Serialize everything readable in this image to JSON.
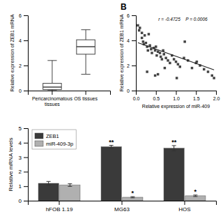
{
  "chart_data": [
    {
      "type": "box",
      "categories": [
        "Pericarcinomatous\ntissues",
        "OS tissues"
      ],
      "whislo": [
        0.0,
        1.3
      ],
      "q1": [
        0.08,
        2.9
      ],
      "med": [
        0.28,
        3.5
      ],
      "q3": [
        0.58,
        4.05
      ],
      "whishi": [
        2.4,
        4.85
      ],
      "color": "#444444",
      "y_label": "Relative expression of ZEB1 mRNA",
      "ylim": [
        0,
        6
      ],
      "yticks": [
        0,
        2,
        4,
        6
      ]
    },
    {
      "type": "scatter",
      "title": "B",
      "annotations": [
        "r = -0.4725",
        "P = 0.0006"
      ],
      "x_label": "Relative expression of miR-409",
      "y_label": "Relative expression of ZEB1 mRNA",
      "xlim": [
        0.0,
        2.0
      ],
      "ylim": [
        0,
        6
      ],
      "xticks": [
        {
          "value": 0.0,
          "label": "0.0"
        },
        0.5,
        {
          "value": 1.0,
          "label": "1.0"
        },
        1.5,
        {
          "value": 2.0,
          "label": "2.0"
        }
      ],
      "yticks": [
        0,
        2,
        4,
        6
      ],
      "series": [
        {
          "type": "scatter",
          "marker": "square",
          "color": "#444444",
          "x": [
            0.05,
            0.08,
            0.1,
            0.15,
            0.18,
            0.2,
            0.22,
            0.25,
            0.28,
            0.3,
            0.32,
            0.35,
            0.38,
            0.4,
            0.45,
            0.48,
            0.5,
            0.52,
            0.55,
            0.6,
            0.62,
            0.65,
            0.68,
            0.7,
            0.75,
            0.8,
            0.85,
            0.9,
            0.95,
            1.0,
            1.05,
            1.1,
            1.2,
            1.3,
            1.4,
            1.5,
            1.6,
            1.7,
            1.8,
            1.9,
            1.95,
            0.28,
            0.48,
            0.72,
            1.02,
            1.22,
            1.52,
            0.15,
            0.55
          ],
          "values": [
            5.2,
            4.8,
            5.0,
            4.2,
            3.9,
            3.7,
            4.4,
            3.8,
            3.5,
            3.2,
            4.5,
            3.6,
            3.3,
            3.0,
            3.4,
            3.2,
            3.5,
            2.8,
            3.1,
            3.0,
            2.7,
            2.5,
            3.2,
            2.9,
            2.6,
            2.4,
            2.2,
            2.8,
            2.5,
            2.3,
            2.1,
            1.9,
            2.6,
            2.4,
            1.8,
            2.2,
            2.0,
            1.7,
            1.5,
            1.2,
            1.0,
            1.5,
            1.2,
            1.8,
            1.0,
            3.9,
            2.3,
            4.6,
            1.3
          ]
        },
        {
          "type": "line",
          "color": "#222222",
          "x": [
            0.05,
            1.95
          ],
          "values": [
            3.82,
            1.65
          ]
        }
      ]
    },
    {
      "type": "bar",
      "categories": [
        "hFOB 1.19",
        "MG63",
        "HOS"
      ],
      "y_label": "Relative mRNA levels",
      "ylim": [
        0,
        5
      ],
      "yticks": [
        0,
        1,
        2,
        3,
        4,
        5
      ],
      "legend": "upper left",
      "series": [
        {
          "name": "ZEB1",
          "color": "#3a3a3a",
          "values": [
            1.2,
            3.72,
            3.62
          ],
          "errors": [
            0.13,
            0.1,
            0.18
          ],
          "significance": [
            null,
            "**",
            "**"
          ]
        },
        {
          "name": "miR-409-3p",
          "color": "#b0b0b0",
          "values": [
            1.08,
            0.24,
            0.34
          ],
          "errors": [
            0.09,
            0.04,
            0.05
          ],
          "significance": [
            null,
            "*",
            "*"
          ]
        }
      ]
    }
  ]
}
